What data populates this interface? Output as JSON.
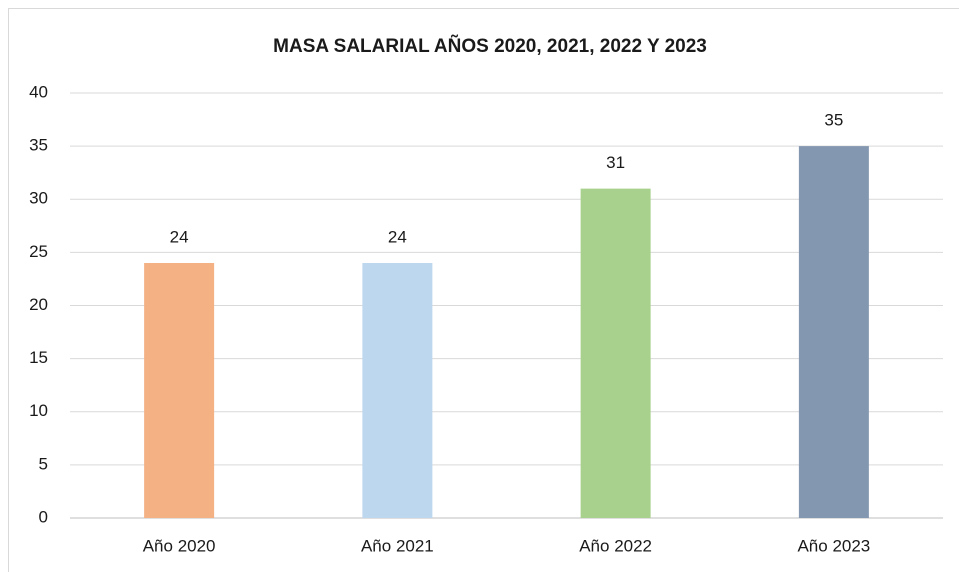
{
  "chart_data": {
    "type": "bar",
    "title": "MASA SALARIAL AÑOS 2020, 2021, 2022 Y 2023",
    "categories": [
      "Año 2020",
      "Año 2021",
      "Año 2022",
      "Año 2023"
    ],
    "values": [
      24,
      24,
      31,
      35
    ],
    "colors": [
      "#f4b183",
      "#bdd7ee",
      "#a9d18e",
      "#8497b0"
    ],
    "ylim": [
      0,
      40
    ],
    "yticks": [
      0,
      5,
      10,
      15,
      20,
      25,
      30,
      35,
      40
    ],
    "grid": true
  }
}
